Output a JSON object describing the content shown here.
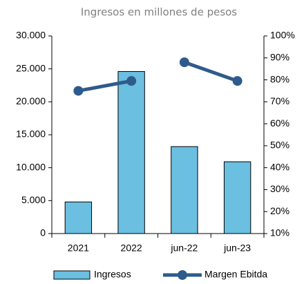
{
  "chart_data": {
    "type": "bar_line",
    "title": "Ingresos en millones de pesos",
    "categories": [
      "2021",
      "2022",
      "jun-22",
      "jun-23"
    ],
    "series": [
      {
        "name": "Ingresos",
        "type": "bar",
        "color": "#6bbfe0",
        "values": [
          4800,
          24600,
          13200,
          10900
        ]
      },
      {
        "name": "Margen Ebitda",
        "type": "line",
        "axis": "y2",
        "color": "#2f5b8c",
        "values": [
          75,
          79.5,
          88,
          79.5
        ],
        "gap_after": [
          1
        ]
      }
    ],
    "ylim": [
      0,
      30000
    ],
    "yticks": [
      0,
      {
        "value": 5000,
        "label": "5.000"
      },
      {
        "value": 10000,
        "label": "10.000"
      },
      {
        "value": 15000,
        "label": "15.000"
      },
      {
        "value": 20000,
        "label": "20.000"
      },
      {
        "value": 25000,
        "label": "25.000"
      },
      {
        "value": 30000,
        "label": "30.000"
      }
    ],
    "y2lim": [
      10,
      100
    ],
    "y2ticks": [
      {
        "value": 10,
        "label": "10%"
      },
      {
        "value": 20,
        "label": "20%"
      },
      {
        "value": 30,
        "label": "30%"
      },
      {
        "value": 40,
        "label": "40%"
      },
      {
        "value": 50,
        "label": "50%"
      },
      {
        "value": 60,
        "label": "60%"
      },
      {
        "value": 70,
        "label": "70%"
      },
      {
        "value": 80,
        "label": "80%"
      },
      {
        "value": 90,
        "label": "90%"
      },
      {
        "value": 100,
        "label": "100%"
      }
    ],
    "legend": "bottom"
  }
}
